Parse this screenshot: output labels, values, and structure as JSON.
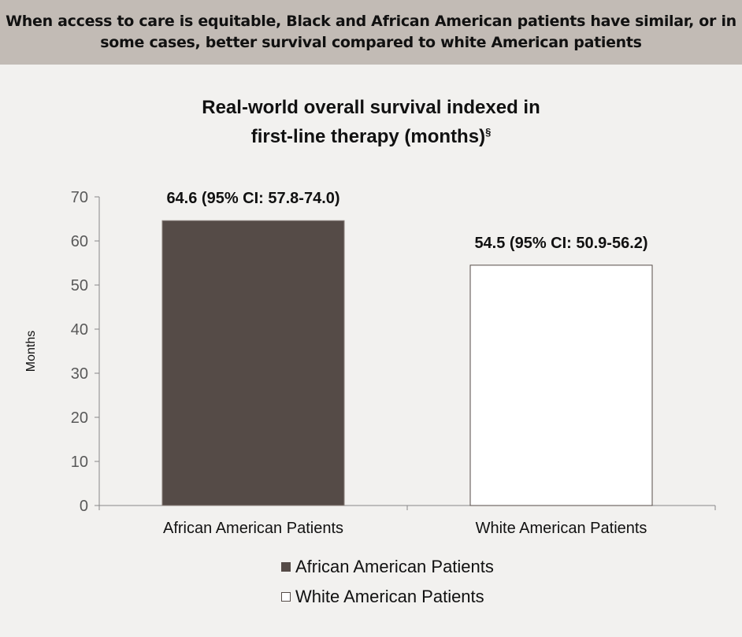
{
  "banner": {
    "text": "When access to care is equitable, Black and African American patients have similar, or in some cases, better survival compared to white American patients"
  },
  "chart_data": {
    "type": "bar",
    "title_line1": "Real-world overall survival indexed in",
    "title_line2": "first-line therapy (months)",
    "title_sup": "§",
    "xlabel": "",
    "ylabel": "Months",
    "ylim": [
      0,
      70
    ],
    "yticks": [
      0,
      10,
      20,
      30,
      40,
      50,
      60,
      70
    ],
    "categories": [
      "African American Patients",
      "White American Patients"
    ],
    "values": [
      64.6,
      54.5
    ],
    "data_labels": [
      "64.6 (95% CI: 57.8-74.0)",
      "54.5 (95% CI: 50.9-56.2)"
    ],
    "colors": [
      "#554b47",
      "#ffffff"
    ],
    "grid": false,
    "legend": {
      "placement": "bottom",
      "entries": [
        "African American Patients",
        "White American Patients"
      ]
    }
  }
}
